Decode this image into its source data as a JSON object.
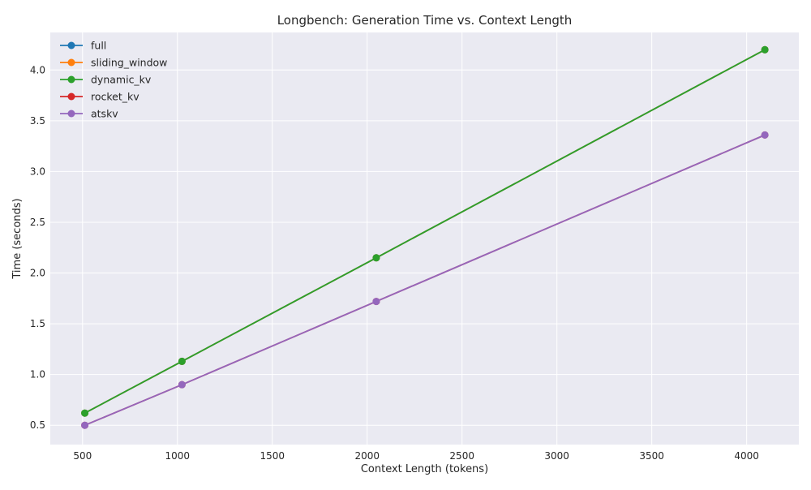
{
  "chart_data": {
    "type": "line",
    "title": "Longbench: Generation Time vs. Context Length",
    "xlabel": "Context Length (tokens)",
    "ylabel": "Time (seconds)",
    "x": [
      512,
      1024,
      2048,
      4096
    ],
    "xlim": [
      330,
      4275
    ],
    "ylim": [
      0.31,
      4.37
    ],
    "xticks": [
      500,
      1000,
      1500,
      2000,
      2500,
      3000,
      3500,
      4000
    ],
    "yticks": [
      0.5,
      1.0,
      1.5,
      2.0,
      2.5,
      3.0,
      3.5,
      4.0
    ],
    "grid": true,
    "legend_position": "top-left",
    "marker": "circle",
    "series": [
      {
        "name": "full",
        "color": "#1f77b4",
        "values": [
          0.62,
          1.13,
          2.15,
          4.2
        ]
      },
      {
        "name": "sliding_window",
        "color": "#ff7f0e",
        "values": [
          0.62,
          1.13,
          2.15,
          4.2
        ]
      },
      {
        "name": "dynamic_kv",
        "color": "#2ca02c",
        "values": [
          0.62,
          1.13,
          2.15,
          4.2
        ]
      },
      {
        "name": "rocket_kv",
        "color": "#d62728",
        "values": [
          0.5,
          0.9,
          1.72,
          3.36
        ]
      },
      {
        "name": "atskv",
        "color": "#9467bd",
        "values": [
          0.5,
          0.9,
          1.72,
          3.36
        ]
      }
    ]
  }
}
